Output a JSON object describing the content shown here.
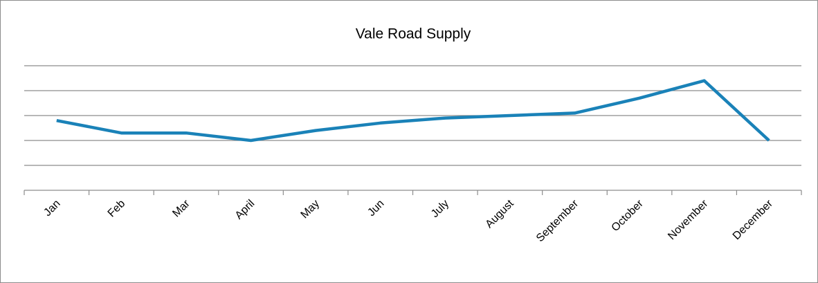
{
  "chart_data": {
    "type": "line",
    "title": "Vale Road Supply",
    "categories": [
      "Jan",
      "Feb",
      "Mar",
      "April",
      "May",
      "Jun",
      "July",
      "August",
      "September",
      "October",
      "November",
      "December"
    ],
    "series": [
      {
        "name": "Vale Road Supply",
        "color": "#1a82b8",
        "values": [
          2.8,
          2.3,
          2.3,
          2.0,
          2.4,
          2.7,
          2.9,
          3.0,
          3.1,
          3.7,
          4.4,
          2.0
        ]
      }
    ],
    "ylim": [
      0,
      5
    ],
    "yticks": [
      0,
      1,
      2,
      3,
      4,
      5
    ],
    "grid": true
  }
}
